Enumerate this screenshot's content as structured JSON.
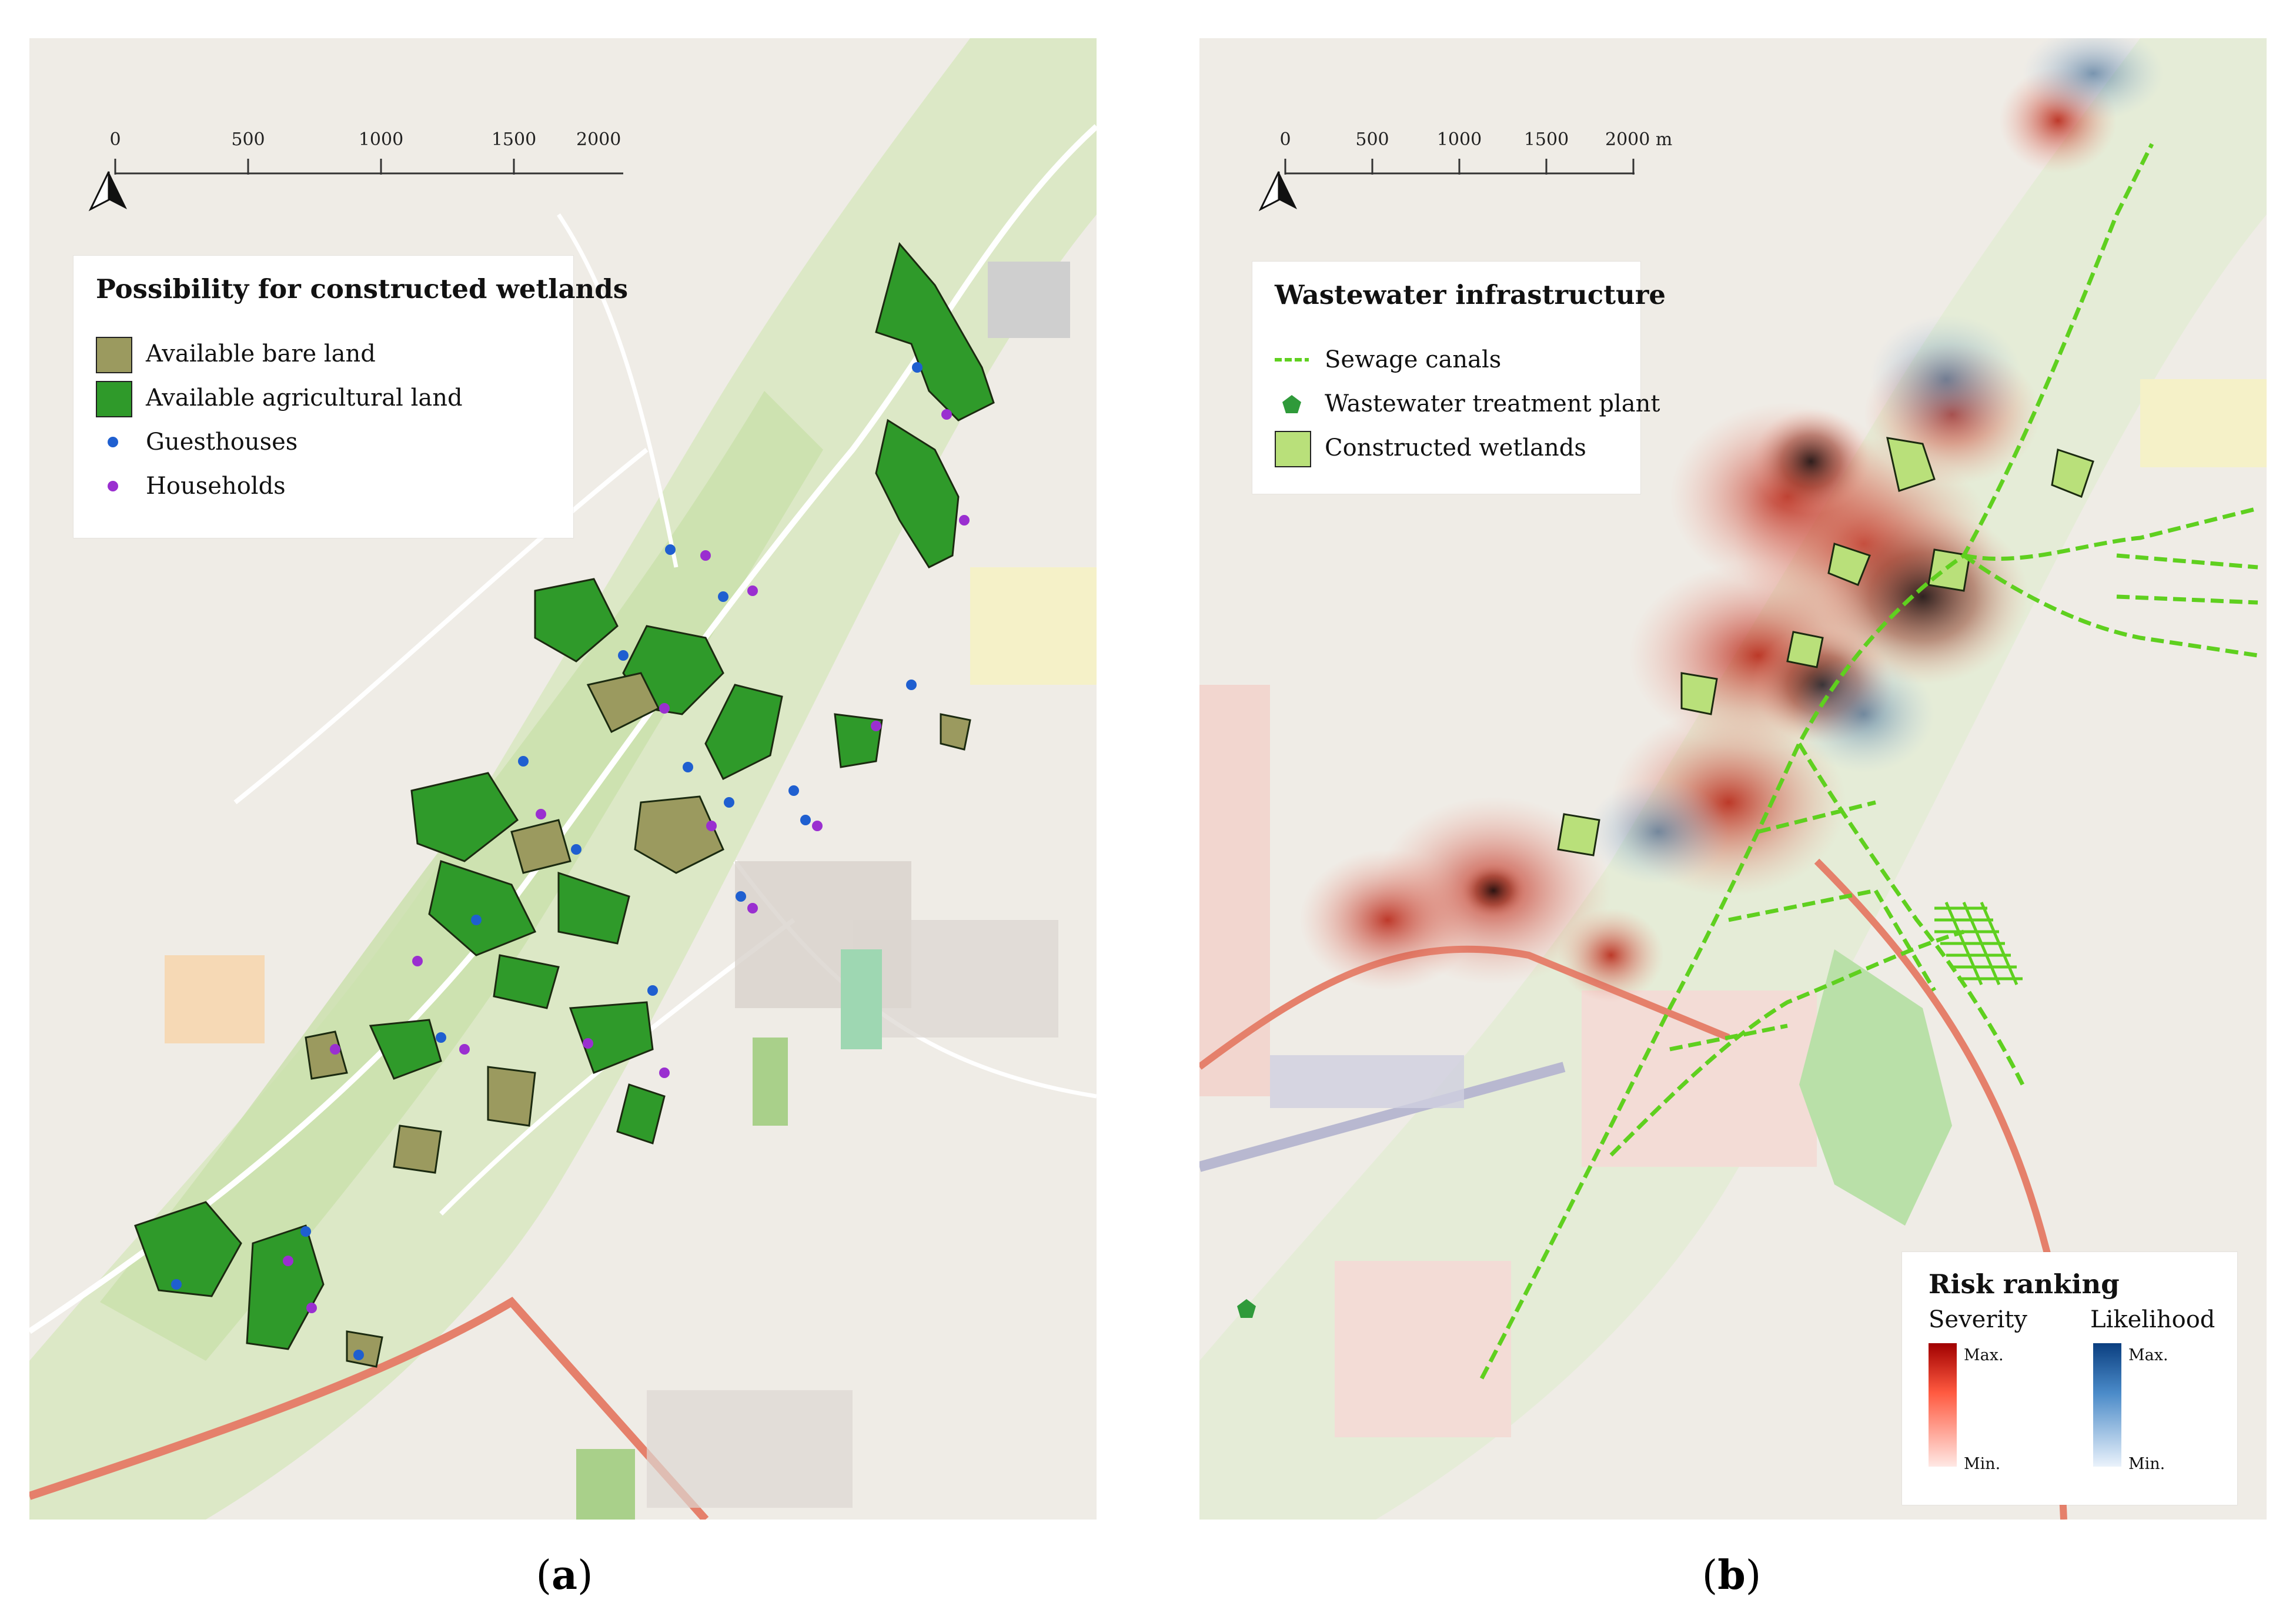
{
  "panel_a": {
    "caption_letter": "a",
    "scale_ticks": [
      "0",
      "500",
      "1000",
      "1500",
      "2000 m"
    ],
    "legend": {
      "title": "Possibility for constructed wetlands",
      "items": [
        {
          "label": "Available bare land",
          "symbol": "square",
          "color": "#9b9a5f"
        },
        {
          "label": "Available agricultural land",
          "symbol": "square",
          "color": "#2f9a2a"
        },
        {
          "label": "Guesthouses",
          "symbol": "dot",
          "color": "#1f5fd0"
        },
        {
          "label": "Households",
          "symbol": "dot",
          "color": "#9a2fd0"
        }
      ]
    }
  },
  "panel_b": {
    "caption_letter": "b",
    "scale_ticks": [
      "0",
      "500",
      "1000",
      "1500",
      "2000 m"
    ],
    "legend": {
      "title": "Wastewater infrastructure",
      "items": [
        {
          "label": "Sewage canals",
          "symbol": "dashed-line",
          "color": "#5fd01f"
        },
        {
          "label": "Wastewater treatment plant",
          "symbol": "pentagon",
          "color": "#2f9a3a"
        },
        {
          "label": "Constructed wetlands",
          "symbol": "square",
          "color": "#b9e07a"
        }
      ]
    },
    "risk_legend": {
      "title": "Risk ranking",
      "severity_label": "Severity",
      "likelihood_label": "Likelihood",
      "max_label": "Max.",
      "min_label": "Min.",
      "severity_color": "#a00000",
      "likelihood_color": "#0b3f80"
    }
  },
  "colors": {
    "map_background": "#efece6",
    "vegetation": "#cfe4b0",
    "road_main": "#e5806b",
    "road_minor": "#ffffff"
  }
}
